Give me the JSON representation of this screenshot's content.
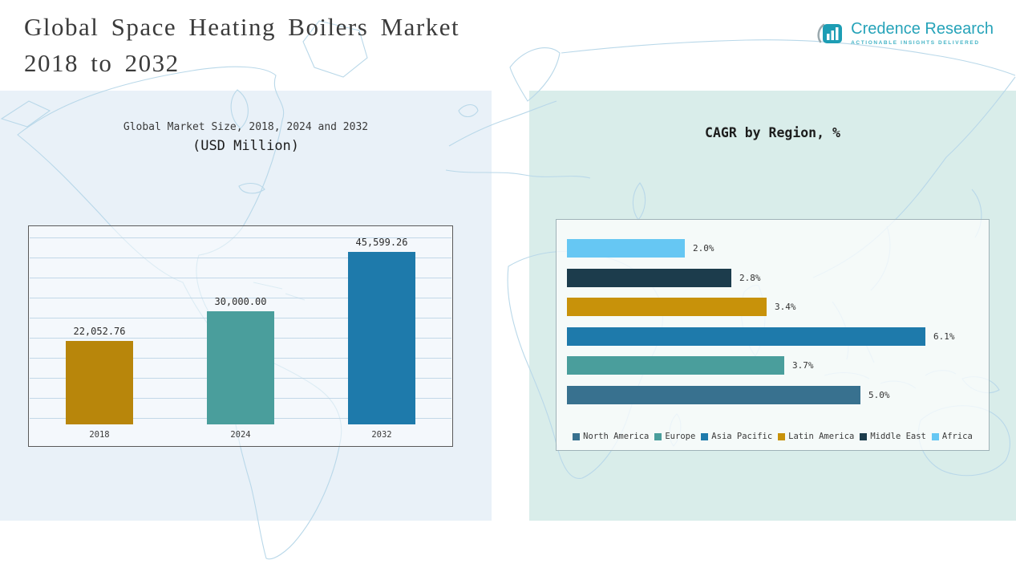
{
  "header": {
    "title_line1": "Global Space Heating Boilers Market",
    "title_line2": "2018 to 2032",
    "logo": {
      "name": "Credence Research",
      "tagline": "Actionable Insights Delivered",
      "brand_color": "#26a3b9"
    }
  },
  "chart_data": [
    {
      "type": "bar",
      "orientation": "vertical",
      "title": "Global Market Size, 2018, 2024 and 2032",
      "subtitle": "(USD Million)",
      "categories": [
        "2018",
        "2024",
        "2032"
      ],
      "values": [
        22052.76,
        30000.0,
        45599.26
      ],
      "labels": [
        "22,052.76",
        "30,000.00",
        "45,599.26"
      ],
      "colors": [
        "#b8860b",
        "#4a9e9c",
        "#1e7aab"
      ],
      "xlabel": "",
      "ylabel": "",
      "ylim": [
        0,
        50000
      ],
      "grid": true,
      "legend_position": "none"
    },
    {
      "type": "bar",
      "orientation": "horizontal",
      "title": "CAGR by Region, %",
      "categories": [
        "Africa",
        "Middle East",
        "Latin America",
        "Asia Pacific",
        "Europe",
        "North America"
      ],
      "values": [
        2.0,
        2.8,
        3.4,
        6.1,
        3.7,
        5.0
      ],
      "labels": [
        "2.0%",
        "2.8%",
        "3.4%",
        "6.1%",
        "3.7%",
        "5.0%"
      ],
      "colors": [
        "#66c7f3",
        "#1c3c4c",
        "#c8920a",
        "#1e7aab",
        "#4a9e9c",
        "#38718f"
      ],
      "xlabel": "",
      "ylabel": "",
      "xlim": [
        0,
        7
      ],
      "grid": false,
      "legend_position": "bottom"
    }
  ],
  "legend": [
    {
      "label": "North America",
      "color": "#38718f"
    },
    {
      "label": "Europe",
      "color": "#4a9e9c"
    },
    {
      "label": "Asia Pacific",
      "color": "#1e7aab"
    },
    {
      "label": "Latin America",
      "color": "#c8920a"
    },
    {
      "label": "Middle East",
      "color": "#1c3c4c"
    },
    {
      "label": "Africa",
      "color": "#66c7f3"
    }
  ]
}
